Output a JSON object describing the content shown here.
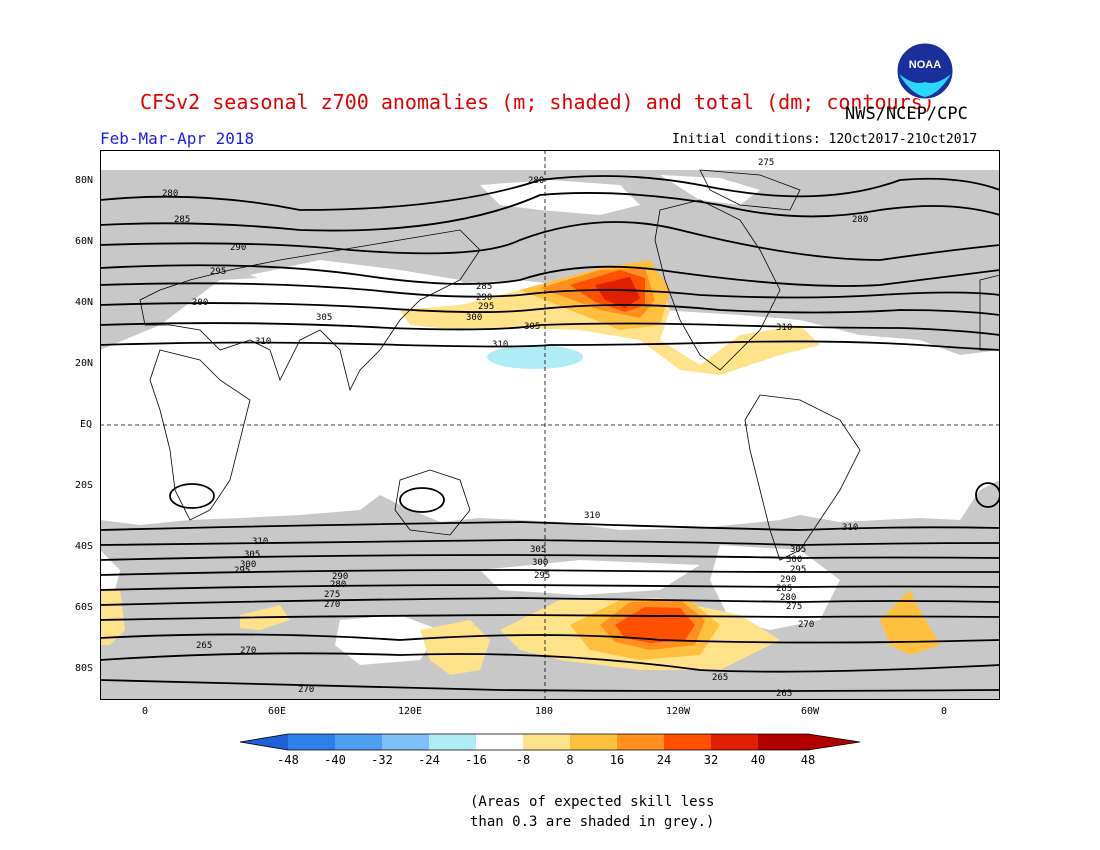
{
  "title": "CFSv2 seasonal z700 anomalies (m; shaded) and total (dm; contours)",
  "org": "NWS/NCEP/CPC",
  "logo_text": "NOAA",
  "season": "Feb-Mar-Apr 2018",
  "initial_conditions": "Initial conditions: 12Oct2017-21Oct2017",
  "lat_labels": [
    "80N",
    "60N",
    "40N",
    "20N",
    "EQ",
    "20S",
    "40S",
    "60S",
    "80S"
  ],
  "lon_labels": [
    "0",
    "60E",
    "120E",
    "180",
    "120W",
    "60W",
    "0"
  ],
  "contour_labels": [
    "275",
    "280",
    "280",
    "280",
    "285",
    "285",
    "290",
    "290",
    "295",
    "295",
    "300",
    "300",
    "305",
    "305",
    "310",
    "310",
    "310",
    "310",
    "310",
    "305",
    "300",
    "295",
    "310",
    "305",
    "300",
    "295",
    "290",
    "280",
    "275",
    "270",
    "265",
    "270",
    "265",
    "265",
    "270",
    "305",
    "300",
    "295",
    "290",
    "285",
    "280",
    "275",
    "270"
  ],
  "colorbar": {
    "ticks": [
      "-48",
      "-40",
      "-32",
      "-24",
      "-16",
      "-8",
      "8",
      "16",
      "24",
      "32",
      "40",
      "48"
    ],
    "colors": [
      "#1f5fd8",
      "#2f7fe8",
      "#4f9ff0",
      "#7fbff8",
      "#b0ecf5",
      "#ffffff",
      "#ffe38a",
      "#ffc040",
      "#ff9020",
      "#ff5000",
      "#e02000",
      "#b00000"
    ]
  },
  "note_line1": "(Areas of expected skill less",
  "note_line2": "than 0.3 are shaded in grey.)"
}
